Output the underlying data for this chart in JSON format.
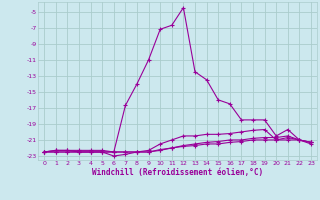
{
  "xlabel": "Windchill (Refroidissement éolien,°C)",
  "bg_color": "#cce8ee",
  "grid_color": "#aacccc",
  "line_color": "#990099",
  "xlim": [
    -0.5,
    23.5
  ],
  "ylim": [
    -23.5,
    -3.8
  ],
  "xticks": [
    0,
    1,
    2,
    3,
    4,
    5,
    6,
    7,
    8,
    9,
    10,
    11,
    12,
    13,
    14,
    15,
    16,
    17,
    18,
    19,
    20,
    21,
    22,
    23
  ],
  "yticks": [
    -5,
    -7,
    -9,
    -11,
    -13,
    -15,
    -17,
    -19,
    -21,
    -23
  ],
  "series": [
    {
      "x": [
        0,
        1,
        2,
        3,
        4,
        5,
        6,
        7,
        8,
        9,
        10,
        11,
        12,
        13,
        14,
        15,
        16,
        17,
        18,
        19,
        20,
        21,
        22,
        23
      ],
      "y": [
        -22.5,
        -22.3,
        -22.3,
        -22.3,
        -22.3,
        -22.3,
        -22.5,
        -16.7,
        -14.0,
        -11.0,
        -7.2,
        -6.7,
        -4.5,
        -12.5,
        -13.5,
        -16.0,
        -16.5,
        -18.5,
        -18.5,
        -18.5,
        -20.5,
        -19.7,
        -21.0,
        -21.5
      ]
    },
    {
      "x": [
        0,
        1,
        2,
        3,
        4,
        5,
        6,
        7,
        8,
        9,
        10,
        11,
        12,
        13,
        14,
        15,
        16,
        17,
        18,
        19,
        20,
        21,
        22,
        23
      ],
      "y": [
        -22.5,
        -22.3,
        -22.3,
        -22.5,
        -22.5,
        -22.5,
        -23.0,
        -22.8,
        -22.5,
        -22.3,
        -21.5,
        -21.0,
        -20.5,
        -20.5,
        -20.3,
        -20.3,
        -20.2,
        -20.0,
        -19.8,
        -19.7,
        -21.0,
        -21.0,
        -21.0,
        -21.3
      ]
    },
    {
      "x": [
        0,
        1,
        2,
        3,
        4,
        5,
        6,
        7,
        8,
        9,
        10,
        11,
        12,
        13,
        14,
        15,
        16,
        17,
        18,
        19,
        20,
        21,
        22,
        23
      ],
      "y": [
        -22.5,
        -22.5,
        -22.5,
        -22.5,
        -22.5,
        -22.5,
        -22.5,
        -22.5,
        -22.5,
        -22.5,
        -22.2,
        -22.0,
        -21.8,
        -21.7,
        -21.5,
        -21.5,
        -21.3,
        -21.2,
        -21.0,
        -21.0,
        -21.0,
        -20.7,
        -21.0,
        -21.3
      ]
    },
    {
      "x": [
        0,
        1,
        2,
        3,
        4,
        5,
        6,
        7,
        8,
        9,
        10,
        11,
        12,
        13,
        14,
        15,
        16,
        17,
        18,
        19,
        20,
        21,
        22,
        23
      ],
      "y": [
        -22.5,
        -22.5,
        -22.5,
        -22.5,
        -22.5,
        -22.5,
        -22.5,
        -22.5,
        -22.5,
        -22.5,
        -22.3,
        -22.0,
        -21.7,
        -21.5,
        -21.3,
        -21.2,
        -21.0,
        -21.0,
        -20.8,
        -20.7,
        -20.7,
        -20.5,
        -21.0,
        -21.3
      ]
    }
  ]
}
